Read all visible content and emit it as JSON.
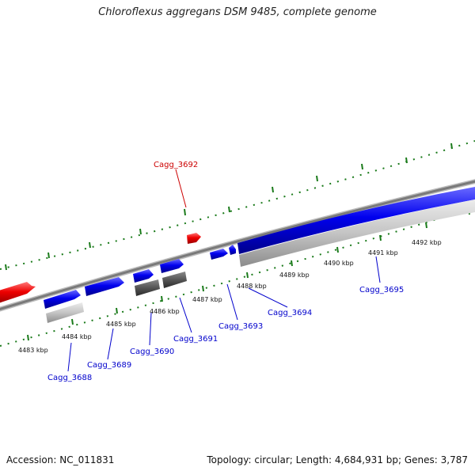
{
  "title": "Chloroflexus aggregans DSM 9485, complete genome",
  "footer": {
    "accession": "Accession: NC_011831",
    "summary": "Topology: circular; Length: 4,684,931 bp; Genes: 3,787"
  },
  "colors": {
    "forward_gene": "#0000dd",
    "highlight_gene": "#ee0000",
    "grey_feature": "#bdbdbd",
    "dark_feature": "#555555",
    "backbone": "#8a8a8a",
    "tick": "#1a7a1a",
    "blue_label": "#0000cc",
    "red_label": "#cc0000"
  },
  "kbp_labels": [
    "4483 kbp",
    "4484 kbp",
    "4485 kbp",
    "4486 kbp",
    "4487 kbp",
    "4488 kbp",
    "4489 kbp",
    "4490 kbp",
    "4491 kbp",
    "4492 kbp"
  ],
  "gene_labels": [
    {
      "text": "Cagg_3692",
      "color": "red"
    },
    {
      "text": "Cagg_3695",
      "color": "blue"
    },
    {
      "text": "Cagg_3694",
      "color": "blue"
    },
    {
      "text": "Cagg_3693",
      "color": "blue"
    },
    {
      "text": "Cagg_3691",
      "color": "blue"
    },
    {
      "text": "Cagg_3690",
      "color": "blue"
    },
    {
      "text": "Cagg_3689",
      "color": "blue"
    },
    {
      "text": "Cagg_3688",
      "color": "blue"
    }
  ]
}
